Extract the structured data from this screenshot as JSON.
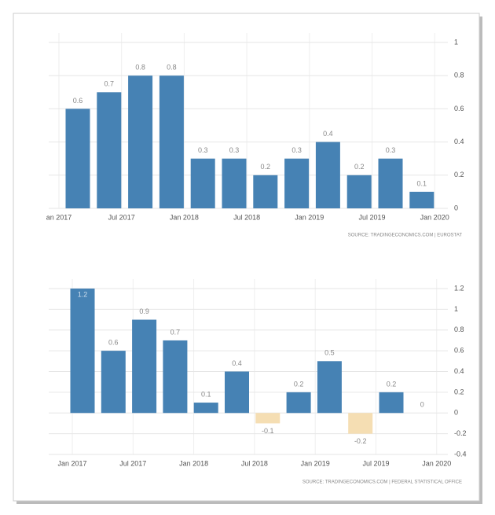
{
  "chart_data": [
    {
      "type": "bar",
      "categories": [
        null,
        null,
        null,
        null,
        null,
        null,
        null,
        null,
        null,
        null,
        null,
        null
      ],
      "values": [
        0.6,
        0.7,
        0.8,
        0.8,
        0.3,
        0.3,
        0.2,
        0.3,
        0.4,
        0.2,
        0.3,
        0.1
      ],
      "color": "#4682b4",
      "negative_color": "#f5deb3",
      "xtick_labels": [
        "an 2017",
        "Jul 2017",
        "Jan 2018",
        "Jul 2018",
        "Jan 2019",
        "Jul 2019",
        "Jan 2020"
      ],
      "ylim": [
        0,
        1
      ],
      "yticks": [
        0,
        0.2,
        0.4,
        0.6,
        0.8,
        1
      ],
      "grid": true,
      "source": "SOURCE: TRADINGECONOMICS.COM | EUROSTAT"
    },
    {
      "type": "bar",
      "categories": [
        null,
        null,
        null,
        null,
        null,
        null,
        null,
        null,
        null,
        null,
        null,
        null
      ],
      "values": [
        1.2,
        0.6,
        0.9,
        0.7,
        0.1,
        0.4,
        -0.1,
        0.2,
        0.5,
        -0.2,
        0.2,
        0
      ],
      "color": "#4682b4",
      "negative_color": "#f5deb3",
      "xtick_labels": [
        "Jan 2017",
        "Jul 2017",
        "Jan 2018",
        "Jul 2018",
        "Jan 2019",
        "Jul 2019",
        "Jan 2020"
      ],
      "ylim": [
        -0.4,
        1.2
      ],
      "yticks": [
        -0.4,
        -0.2,
        0,
        0.2,
        0.4,
        0.6,
        0.8,
        1,
        1.2
      ],
      "grid": true,
      "source": "SOURCE: TRADINGECONOMICS.COM | FEDERAL STATISTICAL OFFICE"
    }
  ]
}
